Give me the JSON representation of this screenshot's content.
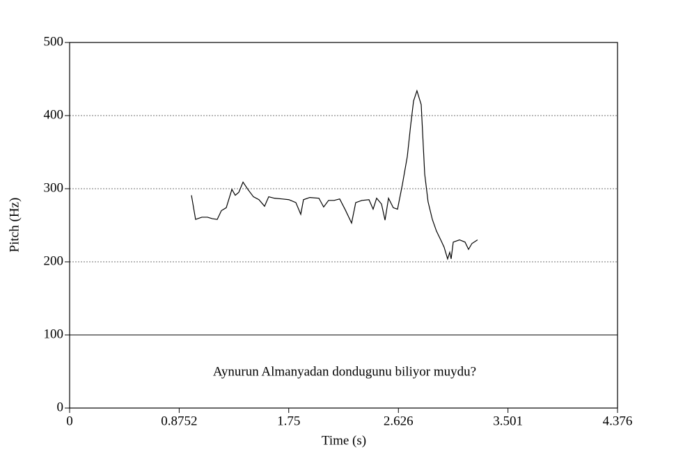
{
  "chart_data": {
    "type": "line",
    "xlabel": "Time (s)",
    "ylabel": "Pitch (Hz)",
    "annotation": "Aynurun Almanyadan dondugunu biliyor muydu?",
    "xlim": [
      0,
      4.376
    ],
    "xticks": [
      0,
      0.8752,
      1.75,
      2.626,
      3.501,
      4.376
    ],
    "ylim": [
      0,
      500
    ],
    "yticks": [
      0,
      100,
      200,
      300,
      400,
      500
    ],
    "grid": true,
    "series": [
      {
        "color": "#000000",
        "x": [
          0.973,
          1.006,
          1.056,
          1.101,
          1.14,
          1.179,
          1.212,
          1.251,
          1.296,
          1.323,
          1.351,
          1.385,
          1.424,
          1.468,
          1.512,
          1.557,
          1.59,
          1.635,
          1.696,
          1.751,
          1.807,
          1.846,
          1.868,
          1.918,
          1.991,
          2.029,
          2.068,
          2.113,
          2.157,
          2.202,
          2.252,
          2.285,
          2.335,
          2.391,
          2.424,
          2.452,
          2.491,
          2.519,
          2.547,
          2.585,
          2.619,
          2.658,
          2.697,
          2.724,
          2.747,
          2.774,
          2.808,
          2.836,
          2.863,
          2.897,
          2.93,
          2.964,
          2.991,
          3.019,
          3.036,
          3.047,
          3.064,
          3.114,
          3.158,
          3.186,
          3.213,
          3.258
        ],
        "values": [
          291,
          258,
          261,
          261,
          259,
          258,
          270,
          274,
          299,
          291,
          295,
          309,
          299,
          289,
          285,
          276,
          289,
          287,
          286,
          285,
          281,
          265,
          285,
          288,
          287,
          275,
          284,
          284,
          286,
          271,
          253,
          281,
          284,
          285,
          272,
          287,
          279,
          257,
          287,
          274,
          272,
          306,
          344,
          387,
          420,
          434,
          415,
          320,
          282,
          258,
          242,
          230,
          220,
          204,
          213,
          204,
          227,
          230,
          227,
          217,
          225,
          230
        ]
      }
    ]
  }
}
